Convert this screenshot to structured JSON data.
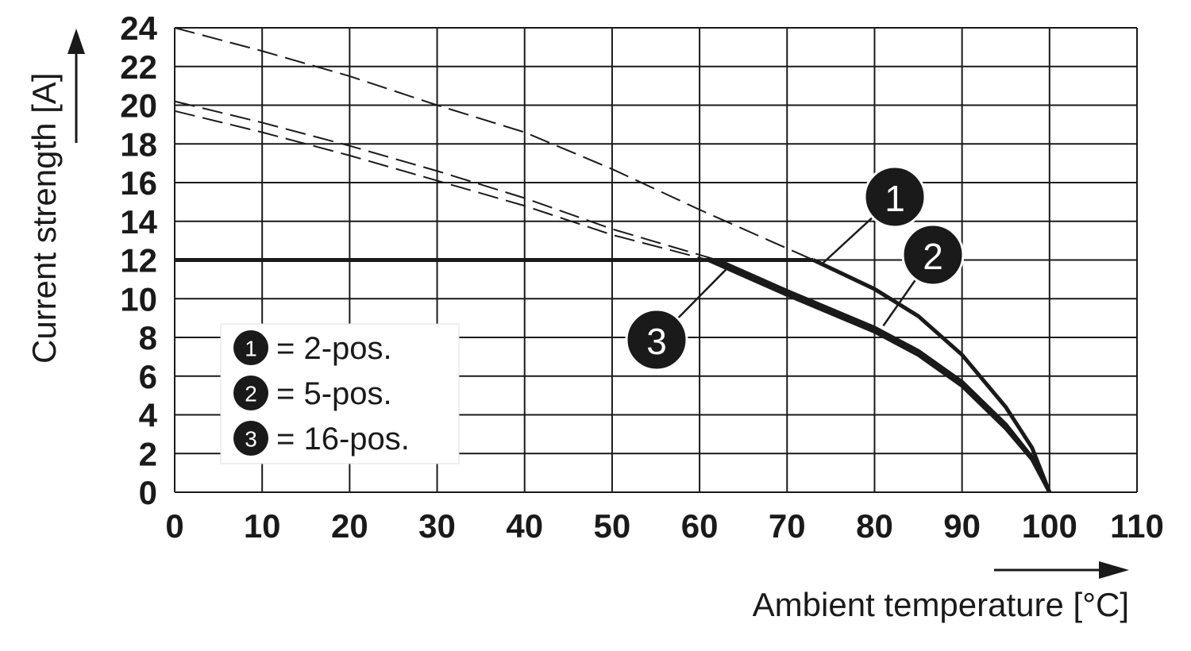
{
  "chart_data": {
    "type": "line",
    "xlabel": "Ambient temperature [°C]",
    "ylabel": "Current strength [A]",
    "xlim": [
      0,
      110
    ],
    "ylim": [
      0,
      24
    ],
    "x_ticks": [
      "0",
      "10",
      "20",
      "30",
      "40",
      "50",
      "60",
      "70",
      "80",
      "90",
      "100",
      "110"
    ],
    "y_ticks": [
      "0",
      "2",
      "4",
      "6",
      "8",
      "10",
      "12",
      "14",
      "16",
      "18",
      "20",
      "22",
      "24"
    ],
    "grid": true,
    "series": [
      {
        "name": "2-pos.",
        "marker": "1",
        "rated_x": [
          0,
          73
        ],
        "rated_y": [
          12,
          12
        ],
        "derating_x": [
          73,
          80,
          85,
          90,
          95,
          98,
          100
        ],
        "derating_y": [
          12,
          10.5,
          9.1,
          7.1,
          4.4,
          2.3,
          0
        ],
        "base_curve_x": [
          0,
          10,
          20,
          30,
          40,
          50,
          60,
          70,
          73
        ],
        "base_curve_y": [
          24,
          22.8,
          21.5,
          20,
          18.6,
          16.7,
          14.6,
          12.6,
          12
        ]
      },
      {
        "name": "5-pos.",
        "marker": "2",
        "rated_x": [
          0,
          62
        ],
        "rated_y": [
          12,
          12
        ],
        "derating_x": [
          62,
          70,
          80,
          85,
          90,
          95,
          98,
          100
        ],
        "derating_y": [
          12,
          10.4,
          8.5,
          7.3,
          5.7,
          3.5,
          1.8,
          0
        ],
        "base_curve_x": [
          0,
          10,
          20,
          30,
          40,
          50,
          62
        ],
        "base_curve_y": [
          20.2,
          19.1,
          17.9,
          16.6,
          15.2,
          13.6,
          12
        ]
      },
      {
        "name": "16-pos.",
        "marker": "3",
        "rated_x": [
          0,
          61
        ],
        "rated_y": [
          12,
          12
        ],
        "derating_x": [
          61,
          70,
          80,
          85,
          90,
          95,
          98,
          100
        ],
        "derating_y": [
          12,
          10.2,
          8.3,
          7.1,
          5.5,
          3.3,
          1.7,
          0
        ],
        "base_curve_x": [
          0,
          10,
          20,
          30,
          40,
          50,
          61
        ],
        "base_curve_y": [
          19.7,
          18.6,
          17.4,
          16.1,
          14.8,
          13.3,
          12
        ]
      }
    ],
    "legend": {
      "placement": "bottom-left",
      "entries": [
        {
          "marker": "1",
          "label": "= 2-pos."
        },
        {
          "marker": "2",
          "label": "= 5-pos."
        },
        {
          "marker": "3",
          "label": "= 16-pos."
        }
      ]
    },
    "callouts": [
      {
        "marker": "1",
        "x": 74,
        "y": 11.8
      },
      {
        "marker": "2",
        "x": 81,
        "y": 8.6
      },
      {
        "marker": "3",
        "x": 63,
        "y": 11.5
      }
    ],
    "colors": {
      "ink": "#1a1a1a",
      "grid": "#1a1a1a",
      "badge": "#1a1a1a",
      "background": "#ffffff"
    }
  }
}
